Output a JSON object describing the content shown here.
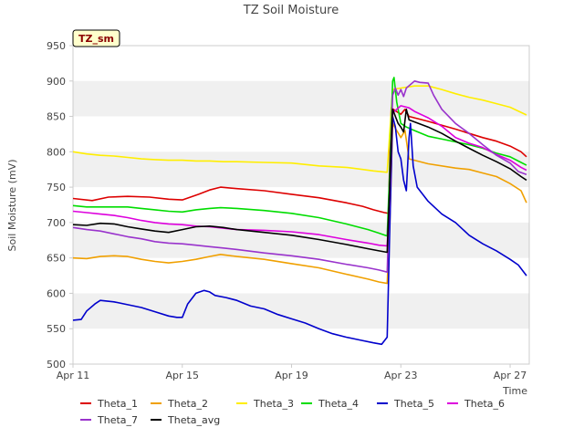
{
  "chart_data": {
    "type": "line",
    "title": "TZ Soil Moisture",
    "xlabel": "Time",
    "ylabel": "Soil Moisture (mV)",
    "badge": "TZ_sm",
    "xlim": [
      0,
      16.7
    ],
    "ylim": [
      500,
      950
    ],
    "yticks": [
      500,
      550,
      600,
      650,
      700,
      750,
      800,
      850,
      900,
      950
    ],
    "xticks": [
      {
        "x": 0,
        "label": "Apr 11"
      },
      {
        "x": 4,
        "label": "Apr 15"
      },
      {
        "x": 8,
        "label": "Apr 19"
      },
      {
        "x": 12,
        "label": "Apr 23"
      },
      {
        "x": 16,
        "label": "Apr 27"
      }
    ],
    "colors": {
      "badge_bg": "#ffffcc",
      "badge_text": "#8b0000",
      "band": "#f0f0f0",
      "axis": "#cccccc",
      "text": "#444444"
    },
    "series": [
      {
        "name": "Theta_1",
        "color": "#dd0000",
        "points": [
          [
            0,
            734
          ],
          [
            0.7,
            731
          ],
          [
            1.3,
            736
          ],
          [
            2,
            737
          ],
          [
            2.8,
            736
          ],
          [
            3.5,
            733
          ],
          [
            4,
            732
          ],
          [
            4.6,
            740
          ],
          [
            5,
            746
          ],
          [
            5.4,
            750
          ],
          [
            6,
            748
          ],
          [
            7,
            745
          ],
          [
            8,
            740
          ],
          [
            9,
            735
          ],
          [
            10,
            728
          ],
          [
            10.6,
            723
          ],
          [
            11,
            718
          ],
          [
            11.4,
            714
          ],
          [
            11.55,
            713
          ],
          [
            11.6,
            800
          ],
          [
            11.65,
            862
          ],
          [
            11.8,
            858
          ],
          [
            12,
            853
          ],
          [
            12.15,
            860
          ],
          [
            12.3,
            850
          ],
          [
            13,
            843
          ],
          [
            14,
            832
          ],
          [
            14.5,
            826
          ],
          [
            15,
            820
          ],
          [
            15.5,
            815
          ],
          [
            16,
            808
          ],
          [
            16.4,
            800
          ],
          [
            16.6,
            793
          ]
        ]
      },
      {
        "name": "Theta_2",
        "color": "#f0a000",
        "points": [
          [
            0,
            650
          ],
          [
            0.5,
            649
          ],
          [
            1,
            652
          ],
          [
            1.5,
            653
          ],
          [
            2,
            652
          ],
          [
            2.5,
            648
          ],
          [
            3,
            645
          ],
          [
            3.5,
            643
          ],
          [
            4,
            645
          ],
          [
            4.5,
            648
          ],
          [
            5,
            652
          ],
          [
            5.4,
            655
          ],
          [
            6,
            652
          ],
          [
            7,
            648
          ],
          [
            8,
            642
          ],
          [
            9,
            636
          ],
          [
            10,
            627
          ],
          [
            10.8,
            620
          ],
          [
            11.2,
            616
          ],
          [
            11.5,
            614
          ],
          [
            11.6,
            700
          ],
          [
            11.7,
            840
          ],
          [
            11.85,
            830
          ],
          [
            12,
            820
          ],
          [
            12.15,
            830
          ],
          [
            12.3,
            790
          ],
          [
            13,
            783
          ],
          [
            14,
            777
          ],
          [
            14.5,
            775
          ],
          [
            15,
            770
          ],
          [
            15.5,
            765
          ],
          [
            16,
            755
          ],
          [
            16.4,
            745
          ],
          [
            16.6,
            728
          ]
        ]
      },
      {
        "name": "Theta_3",
        "color": "#ffee00",
        "points": [
          [
            0,
            800
          ],
          [
            0.5,
            797
          ],
          [
            1,
            795
          ],
          [
            1.5,
            794
          ],
          [
            2,
            792
          ],
          [
            2.5,
            790
          ],
          [
            3,
            789
          ],
          [
            3.5,
            788
          ],
          [
            4,
            788
          ],
          [
            4.5,
            787
          ],
          [
            5,
            787
          ],
          [
            5.5,
            786
          ],
          [
            6,
            786
          ],
          [
            7,
            785
          ],
          [
            8,
            784
          ],
          [
            9,
            780
          ],
          [
            10,
            778
          ],
          [
            10.6,
            775
          ],
          [
            11,
            773
          ],
          [
            11.5,
            771
          ],
          [
            11.6,
            830
          ],
          [
            11.7,
            888
          ],
          [
            12,
            890
          ],
          [
            12.5,
            893
          ],
          [
            13,
            893
          ],
          [
            13.5,
            888
          ],
          [
            14,
            882
          ],
          [
            14.5,
            877
          ],
          [
            15,
            873
          ],
          [
            15.5,
            868
          ],
          [
            16,
            863
          ],
          [
            16.6,
            852
          ]
        ]
      },
      {
        "name": "Theta_4",
        "color": "#00dd00",
        "points": [
          [
            0,
            724
          ],
          [
            0.5,
            722
          ],
          [
            1,
            722
          ],
          [
            1.5,
            722
          ],
          [
            2,
            722
          ],
          [
            2.5,
            720
          ],
          [
            3,
            718
          ],
          [
            3.5,
            716
          ],
          [
            4,
            715
          ],
          [
            4.5,
            718
          ],
          [
            5,
            720
          ],
          [
            5.4,
            721
          ],
          [
            6,
            720
          ],
          [
            7,
            717
          ],
          [
            8,
            713
          ],
          [
            9,
            707
          ],
          [
            10,
            698
          ],
          [
            10.8,
            690
          ],
          [
            11.2,
            685
          ],
          [
            11.5,
            681
          ],
          [
            11.6,
            780
          ],
          [
            11.7,
            900
          ],
          [
            11.75,
            905
          ],
          [
            11.85,
            870
          ],
          [
            12,
            840
          ],
          [
            12.2,
            835
          ],
          [
            12.5,
            830
          ],
          [
            13,
            822
          ],
          [
            13.5,
            818
          ],
          [
            14,
            814
          ],
          [
            14.5,
            810
          ],
          [
            15,
            805
          ],
          [
            15.5,
            798
          ],
          [
            16,
            793
          ],
          [
            16.4,
            785
          ],
          [
            16.6,
            781
          ]
        ]
      },
      {
        "name": "Theta_5",
        "color": "#0000cc",
        "points": [
          [
            0,
            562
          ],
          [
            0.3,
            563
          ],
          [
            0.5,
            575
          ],
          [
            0.8,
            585
          ],
          [
            1,
            590
          ],
          [
            1.5,
            588
          ],
          [
            2,
            584
          ],
          [
            2.5,
            580
          ],
          [
            3,
            574
          ],
          [
            3.5,
            568
          ],
          [
            3.8,
            566
          ],
          [
            4,
            566
          ],
          [
            4.2,
            585
          ],
          [
            4.5,
            600
          ],
          [
            4.8,
            604
          ],
          [
            5,
            602
          ],
          [
            5.2,
            597
          ],
          [
            5.6,
            594
          ],
          [
            6,
            590
          ],
          [
            6.5,
            582
          ],
          [
            7,
            578
          ],
          [
            7.5,
            570
          ],
          [
            8,
            564
          ],
          [
            8.5,
            558
          ],
          [
            9,
            550
          ],
          [
            9.5,
            543
          ],
          [
            10,
            538
          ],
          [
            10.5,
            534
          ],
          [
            11,
            530
          ],
          [
            11.3,
            528
          ],
          [
            11.5,
            538
          ],
          [
            11.6,
            700
          ],
          [
            11.7,
            850
          ],
          [
            11.8,
            835
          ],
          [
            11.9,
            800
          ],
          [
            12,
            790
          ],
          [
            12.1,
            760
          ],
          [
            12.2,
            745
          ],
          [
            12.3,
            820
          ],
          [
            12.35,
            840
          ],
          [
            12.45,
            780
          ],
          [
            12.6,
            750
          ],
          [
            13,
            730
          ],
          [
            13.5,
            712
          ],
          [
            14,
            700
          ],
          [
            14.5,
            682
          ],
          [
            15,
            670
          ],
          [
            15.5,
            660
          ],
          [
            16,
            648
          ],
          [
            16.3,
            640
          ],
          [
            16.6,
            625
          ]
        ]
      },
      {
        "name": "Theta_6",
        "color": "#dd00dd",
        "points": [
          [
            0,
            716
          ],
          [
            0.5,
            714
          ],
          [
            1,
            712
          ],
          [
            1.5,
            710
          ],
          [
            2,
            707
          ],
          [
            2.5,
            703
          ],
          [
            3,
            700
          ],
          [
            3.5,
            698
          ],
          [
            4,
            697
          ],
          [
            4.5,
            695
          ],
          [
            5,
            694
          ],
          [
            5.5,
            692
          ],
          [
            6,
            690
          ],
          [
            7,
            689
          ],
          [
            8,
            687
          ],
          [
            9,
            683
          ],
          [
            10,
            676
          ],
          [
            10.8,
            671
          ],
          [
            11.2,
            668
          ],
          [
            11.5,
            667
          ],
          [
            11.6,
            750
          ],
          [
            11.7,
            855
          ],
          [
            12,
            865
          ],
          [
            12.3,
            862
          ],
          [
            12.5,
            857
          ],
          [
            13,
            848
          ],
          [
            13.5,
            836
          ],
          [
            14,
            820
          ],
          [
            14.5,
            812
          ],
          [
            15,
            806
          ],
          [
            15.5,
            796
          ],
          [
            16,
            788
          ],
          [
            16.4,
            778
          ],
          [
            16.6,
            774
          ]
        ]
      },
      {
        "name": "Theta_7",
        "color": "#9933cc",
        "points": [
          [
            0,
            693
          ],
          [
            0.5,
            690
          ],
          [
            1,
            688
          ],
          [
            1.5,
            684
          ],
          [
            2,
            680
          ],
          [
            2.5,
            677
          ],
          [
            3,
            673
          ],
          [
            3.5,
            671
          ],
          [
            4,
            670
          ],
          [
            4.5,
            668
          ],
          [
            5,
            666
          ],
          [
            5.5,
            664
          ],
          [
            6,
            662
          ],
          [
            7,
            657
          ],
          [
            8,
            653
          ],
          [
            9,
            648
          ],
          [
            10,
            641
          ],
          [
            10.8,
            636
          ],
          [
            11.2,
            633
          ],
          [
            11.5,
            630
          ],
          [
            11.6,
            760
          ],
          [
            11.7,
            880
          ],
          [
            11.8,
            890
          ],
          [
            11.9,
            880
          ],
          [
            12,
            888
          ],
          [
            12.1,
            878
          ],
          [
            12.2,
            890
          ],
          [
            12.5,
            900
          ],
          [
            12.7,
            898
          ],
          [
            13,
            897
          ],
          [
            13.2,
            880
          ],
          [
            13.5,
            860
          ],
          [
            14,
            840
          ],
          [
            14.5,
            826
          ],
          [
            15,
            810
          ],
          [
            15.5,
            795
          ],
          [
            16,
            784
          ],
          [
            16.3,
            772
          ],
          [
            16.6,
            768
          ]
        ]
      },
      {
        "name": "Theta_avg",
        "color": "#000000",
        "points": [
          [
            0,
            697
          ],
          [
            0.5,
            696
          ],
          [
            1,
            699
          ],
          [
            1.5,
            698
          ],
          [
            2,
            694
          ],
          [
            2.5,
            691
          ],
          [
            3,
            688
          ],
          [
            3.5,
            686
          ],
          [
            4,
            690
          ],
          [
            4.5,
            694
          ],
          [
            5,
            695
          ],
          [
            5.5,
            693
          ],
          [
            6,
            690
          ],
          [
            7,
            686
          ],
          [
            8,
            682
          ],
          [
            9,
            676
          ],
          [
            10,
            669
          ],
          [
            10.8,
            663
          ],
          [
            11.2,
            660
          ],
          [
            11.5,
            658
          ],
          [
            11.6,
            760
          ],
          [
            11.7,
            860
          ],
          [
            11.8,
            850
          ],
          [
            11.9,
            840
          ],
          [
            12,
            835
          ],
          [
            12.1,
            828
          ],
          [
            12.2,
            860
          ],
          [
            12.3,
            845
          ],
          [
            13,
            835
          ],
          [
            13.5,
            826
          ],
          [
            14,
            815
          ],
          [
            14.5,
            805
          ],
          [
            15,
            795
          ],
          [
            15.5,
            786
          ],
          [
            16,
            776
          ],
          [
            16.4,
            765
          ],
          [
            16.6,
            760
          ]
        ]
      }
    ]
  }
}
